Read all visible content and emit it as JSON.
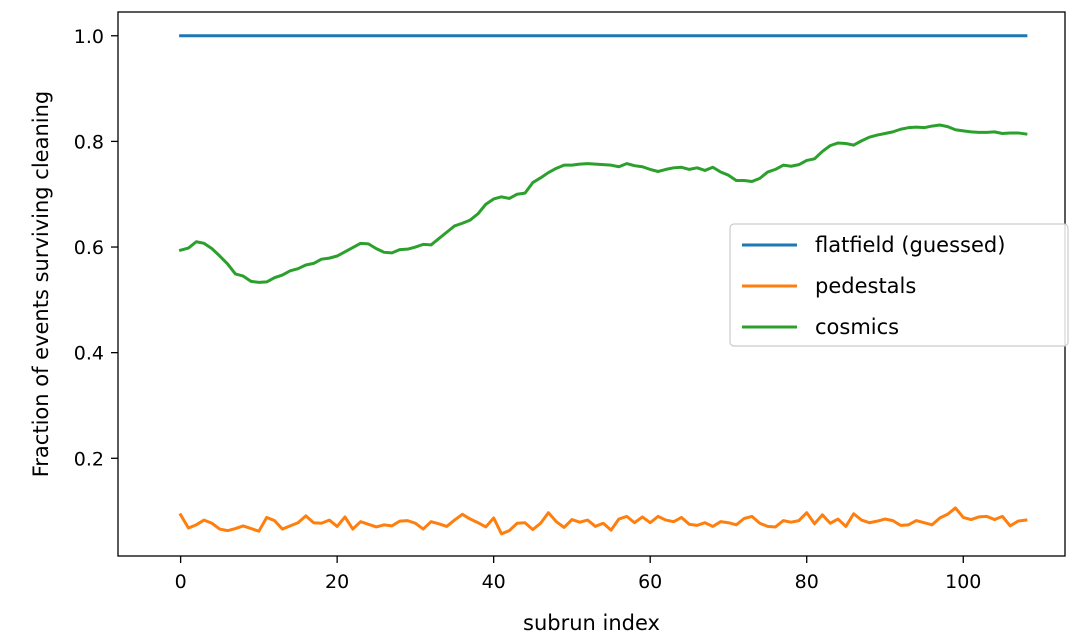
{
  "chart_data": {
    "type": "line",
    "title": "",
    "xlabel": "subrun index",
    "ylabel": "Fraction of events surviving cleaning",
    "xlim": [
      -8,
      113
    ],
    "ylim": [
      0.015,
      1.045
    ],
    "x_ticks": [
      0,
      20,
      40,
      60,
      80,
      100
    ],
    "y_ticks": [
      0.2,
      0.4,
      0.6,
      0.8,
      1.0
    ],
    "x_tick_labels": [
      "0",
      "20",
      "40",
      "60",
      "80",
      "100"
    ],
    "y_tick_labels": [
      "0.2",
      "0.4",
      "0.6",
      "0.8",
      "1.0"
    ],
    "grid": false,
    "legend_position": "center-right",
    "series": [
      {
        "name": "flatfield (guessed)",
        "color": "#1f77b4",
        "x": [
          0,
          108
        ],
        "y": [
          1.0,
          1.0
        ]
      },
      {
        "name": "pedestals",
        "color": "#ff7f0e",
        "x": [
          0,
          1,
          2,
          3,
          4,
          5,
          6,
          7,
          8,
          9,
          10,
          11,
          12,
          13,
          14,
          15,
          16,
          17,
          18,
          19,
          20,
          21,
          22,
          23,
          24,
          25,
          26,
          27,
          28,
          29,
          30,
          31,
          32,
          33,
          34,
          35,
          36,
          37,
          38,
          39,
          40,
          41,
          42,
          43,
          44,
          45,
          46,
          47,
          48,
          49,
          50,
          51,
          52,
          53,
          54,
          55,
          56,
          57,
          58,
          59,
          60,
          61,
          62,
          63,
          64,
          65,
          66,
          67,
          68,
          69,
          70,
          71,
          72,
          73,
          74,
          75,
          76,
          77,
          78,
          79,
          80,
          81,
          82,
          83,
          84,
          85,
          86,
          87,
          88,
          89,
          90,
          91,
          92,
          93,
          94,
          95,
          96,
          97,
          98,
          99,
          100,
          101,
          102,
          103,
          104,
          105,
          106,
          107,
          108
        ],
        "y": [
          0.093,
          0.068,
          0.074,
          0.083,
          0.077,
          0.066,
          0.063,
          0.067,
          0.072,
          0.067,
          0.062,
          0.088,
          0.082,
          0.066,
          0.072,
          0.078,
          0.091,
          0.078,
          0.077,
          0.083,
          0.071,
          0.089,
          0.066,
          0.08,
          0.075,
          0.07,
          0.074,
          0.072,
          0.081,
          0.082,
          0.077,
          0.066,
          0.08,
          0.076,
          0.071,
          0.083,
          0.094,
          0.085,
          0.078,
          0.07,
          0.087,
          0.057,
          0.063,
          0.077,
          0.078,
          0.065,
          0.077,
          0.097,
          0.08,
          0.069,
          0.084,
          0.079,
          0.083,
          0.071,
          0.077,
          0.064,
          0.085,
          0.09,
          0.078,
          0.089,
          0.078,
          0.09,
          0.083,
          0.08,
          0.088,
          0.075,
          0.073,
          0.078,
          0.071,
          0.08,
          0.078,
          0.074,
          0.086,
          0.09,
          0.077,
          0.071,
          0.07,
          0.082,
          0.079,
          0.082,
          0.097,
          0.076,
          0.093,
          0.077,
          0.085,
          0.071,
          0.095,
          0.083,
          0.078,
          0.081,
          0.085,
          0.082,
          0.073,
          0.074,
          0.082,
          0.078,
          0.074,
          0.087,
          0.094,
          0.106,
          0.088,
          0.084,
          0.089,
          0.09,
          0.084,
          0.09,
          0.072,
          0.081,
          0.083
        ]
      },
      {
        "name": "cosmics",
        "color": "#2ca02c",
        "x": [
          0,
          1,
          2,
          3,
          4,
          5,
          6,
          7,
          8,
          9,
          10,
          11,
          12,
          13,
          14,
          15,
          16,
          17,
          18,
          19,
          20,
          21,
          22,
          23,
          24,
          25,
          26,
          27,
          28,
          29,
          30,
          31,
          32,
          33,
          34,
          35,
          36,
          37,
          38,
          39,
          40,
          41,
          42,
          43,
          44,
          45,
          46,
          47,
          48,
          49,
          50,
          51,
          52,
          53,
          54,
          55,
          56,
          57,
          58,
          59,
          60,
          61,
          62,
          63,
          64,
          65,
          66,
          67,
          68,
          69,
          70,
          71,
          72,
          73,
          74,
          75,
          76,
          77,
          78,
          79,
          80,
          81,
          82,
          83,
          84,
          85,
          86,
          87,
          88,
          89,
          90,
          91,
          92,
          93,
          94,
          95,
          96,
          97,
          98,
          99,
          100,
          101,
          102,
          103,
          104,
          105,
          106,
          107,
          108
        ],
        "y": [
          0.594,
          0.598,
          0.61,
          0.607,
          0.597,
          0.583,
          0.568,
          0.549,
          0.545,
          0.535,
          0.533,
          0.534,
          0.542,
          0.547,
          0.555,
          0.559,
          0.566,
          0.569,
          0.577,
          0.579,
          0.583,
          0.591,
          0.599,
          0.607,
          0.606,
          0.597,
          0.59,
          0.589,
          0.595,
          0.596,
          0.6,
          0.605,
          0.604,
          0.616,
          0.628,
          0.64,
          0.645,
          0.651,
          0.663,
          0.681,
          0.691,
          0.695,
          0.692,
          0.7,
          0.702,
          0.722,
          0.731,
          0.741,
          0.749,
          0.755,
          0.755,
          0.757,
          0.758,
          0.757,
          0.756,
          0.755,
          0.752,
          0.758,
          0.754,
          0.752,
          0.747,
          0.743,
          0.747,
          0.75,
          0.751,
          0.747,
          0.75,
          0.745,
          0.751,
          0.742,
          0.736,
          0.726,
          0.726,
          0.724,
          0.73,
          0.742,
          0.747,
          0.755,
          0.753,
          0.756,
          0.764,
          0.767,
          0.781,
          0.792,
          0.797,
          0.796,
          0.793,
          0.801,
          0.808,
          0.812,
          0.815,
          0.818,
          0.823,
          0.826,
          0.827,
          0.826,
          0.829,
          0.831,
          0.828,
          0.822,
          0.82,
          0.818,
          0.817,
          0.817,
          0.818,
          0.815,
          0.816,
          0.816,
          0.814
        ]
      }
    ]
  }
}
